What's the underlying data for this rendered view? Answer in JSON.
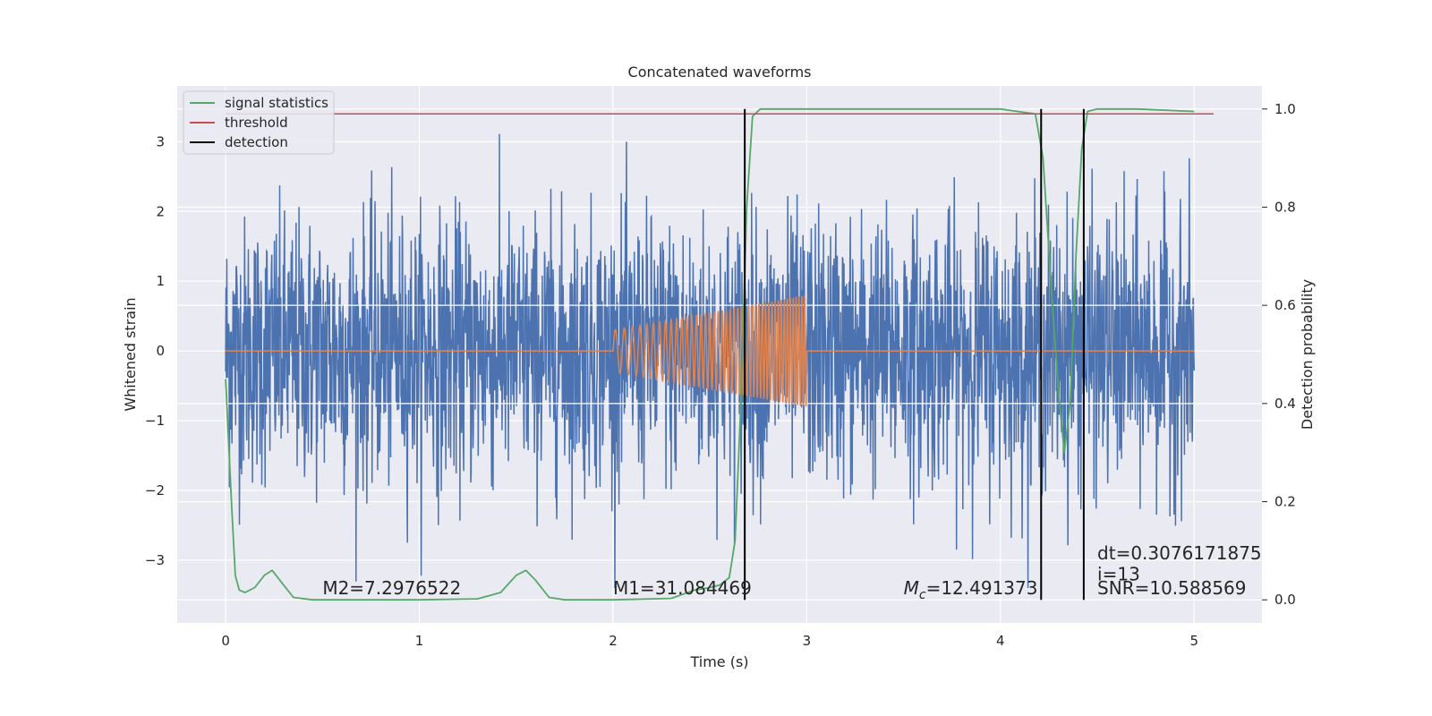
{
  "chart_data": {
    "type": "line",
    "title": "Concatenated waveforms",
    "xlabel": "Time (s)",
    "ylabel": "Whitened strain",
    "y2label": "Detection probability",
    "xlim": [
      -0.25,
      5.35
    ],
    "ylim": [
      -3.9,
      3.8
    ],
    "y2lim": [
      -0.047,
      1.047
    ],
    "xticks": [
      0,
      1,
      2,
      3,
      4,
      5
    ],
    "yticks": [
      -3,
      -2,
      -1,
      0,
      1,
      2,
      3
    ],
    "y2ticks": [
      0.0,
      0.2,
      0.4,
      0.6,
      0.8,
      1.0
    ],
    "xtick_labels": [
      "0",
      "1",
      "2",
      "3",
      "4",
      "5"
    ],
    "ytick_labels": [
      "−3",
      "−2",
      "−1",
      "0",
      "1",
      "2",
      "3"
    ],
    "y2tick_labels": [
      "0.0",
      "0.2",
      "0.4",
      "0.6",
      "0.8",
      "1.0"
    ],
    "grid": true,
    "legend_position": "top-left",
    "background": "#eaeaf2",
    "series": [
      {
        "name": "signal statistics",
        "axis": "right",
        "color": "#55a868",
        "x": [
          0.0,
          0.03,
          0.05,
          0.07,
          0.1,
          0.15,
          0.2,
          0.24,
          0.3,
          0.35,
          0.45,
          0.6,
          1.0,
          1.3,
          1.42,
          1.5,
          1.55,
          1.6,
          1.67,
          1.75,
          2.0,
          2.3,
          2.42,
          2.5,
          2.55,
          2.6,
          2.63,
          2.66,
          2.69,
          2.72,
          2.76,
          2.85,
          3.2,
          4.0,
          4.18,
          4.22,
          4.26,
          4.3,
          4.33,
          4.36,
          4.39,
          4.42,
          4.45,
          4.5,
          4.7,
          5.0
        ],
        "values": [
          0.45,
          0.2,
          0.05,
          0.02,
          0.015,
          0.025,
          0.05,
          0.06,
          0.03,
          0.005,
          0.0,
          0.0,
          0.0,
          0.002,
          0.015,
          0.05,
          0.06,
          0.04,
          0.005,
          0.0,
          0.0,
          0.003,
          0.02,
          0.025,
          0.03,
          0.045,
          0.12,
          0.4,
          0.8,
          0.985,
          1.0,
          1.0,
          1.0,
          1.0,
          0.99,
          0.9,
          0.65,
          0.42,
          0.3,
          0.4,
          0.7,
          0.92,
          0.995,
          1.0,
          1.0,
          0.995
        ]
      },
      {
        "name": "threshold",
        "axis": "right",
        "color": "#c44e52",
        "x": [
          0.0,
          5.1
        ],
        "values": [
          0.99,
          0.99
        ]
      },
      {
        "name": "detection",
        "axis": "right",
        "color": "#000000",
        "x": [
          2.68,
          4.21,
          4.43
        ],
        "values": [
          1.0,
          1.0,
          1.0
        ]
      },
      {
        "name": "",
        "axis": "left",
        "color": "#4c72b0",
        "kind": "noise",
        "x_range": [
          0,
          5
        ],
        "amplitude": 3.4
      },
      {
        "name": "",
        "axis": "left",
        "color": "#dd8452",
        "kind": "chirp",
        "x_range": [
          2.0,
          3.0
        ],
        "amplitude_range": [
          0.3,
          0.8
        ]
      }
    ],
    "annotations": [
      {
        "text": "M2=7.2976522",
        "x": 0.5,
        "y": -3.4
      },
      {
        "text": "M1=31.084469",
        "x": 2.0,
        "y": -3.4
      },
      {
        "text_prefix": "M",
        "text_sub": "c",
        "text": "=12.491373",
        "x": 3.5,
        "y": -3.4
      },
      {
        "text": "SNR=10.588569",
        "x": 4.5,
        "y": -3.4
      },
      {
        "text": " i=13",
        "x": 4.5,
        "y": -3.2
      },
      {
        "text": "dt=0.3076171875",
        "x": 4.5,
        "y": -2.9
      }
    ]
  }
}
